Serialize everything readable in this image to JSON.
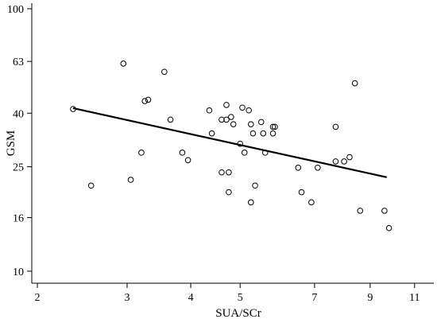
{
  "chart_data": {
    "type": "scatter",
    "title": "",
    "xlabel": "SUA/SCr",
    "ylabel": "GSM",
    "x_scale": "log",
    "y_scale": "log",
    "xlim": [
      1.95,
      12.0
    ],
    "ylim": [
      9.0,
      105.0
    ],
    "x_ticks": [
      2,
      3,
      4,
      5,
      7,
      9,
      11
    ],
    "x_tick_labels": [
      "2",
      "3",
      "4",
      "5",
      "7",
      "9",
      "11"
    ],
    "y_ticks": [
      10,
      16,
      25,
      40,
      63,
      100
    ],
    "y_tick_labels": [
      "10",
      "16",
      "25",
      "40",
      "63",
      "100"
    ],
    "grid": false,
    "series": [
      {
        "type": "scatter",
        "marker": "open-circle",
        "points": [
          [
            2.35,
            41.5
          ],
          [
            2.55,
            21.2
          ],
          [
            2.95,
            61.8
          ],
          [
            3.05,
            22.3
          ],
          [
            3.2,
            28.3
          ],
          [
            3.25,
            44.5
          ],
          [
            3.3,
            45.0
          ],
          [
            3.55,
            57.5
          ],
          [
            3.65,
            37.8
          ],
          [
            3.85,
            28.3
          ],
          [
            3.95,
            26.5
          ],
          [
            4.35,
            41.0
          ],
          [
            4.4,
            33.5
          ],
          [
            4.6,
            23.8
          ],
          [
            4.6,
            37.8
          ],
          [
            4.7,
            37.8
          ],
          [
            4.7,
            43.0
          ],
          [
            4.75,
            23.8
          ],
          [
            4.75,
            20.0
          ],
          [
            4.8,
            38.7
          ],
          [
            4.85,
            36.3
          ],
          [
            5.0,
            30.6
          ],
          [
            5.05,
            42.0
          ],
          [
            5.1,
            28.3
          ],
          [
            5.2,
            41.0
          ],
          [
            5.25,
            36.3
          ],
          [
            5.25,
            18.3
          ],
          [
            5.3,
            33.5
          ],
          [
            5.35,
            21.2
          ],
          [
            5.5,
            37.0
          ],
          [
            5.55,
            33.5
          ],
          [
            5.6,
            28.3
          ],
          [
            5.8,
            35.5
          ],
          [
            5.8,
            33.5
          ],
          [
            5.85,
            35.5
          ],
          [
            6.5,
            24.8
          ],
          [
            6.6,
            20.0
          ],
          [
            6.9,
            18.3
          ],
          [
            7.1,
            24.8
          ],
          [
            7.7,
            35.5
          ],
          [
            7.7,
            26.2
          ],
          [
            8.0,
            26.2
          ],
          [
            8.2,
            27.2
          ],
          [
            8.4,
            52.0
          ],
          [
            8.6,
            17.0
          ],
          [
            9.6,
            17.0
          ],
          [
            9.8,
            14.6
          ]
        ]
      },
      {
        "type": "line",
        "points": [
          [
            2.35,
            41.8
          ],
          [
            9.7,
            22.8
          ]
        ]
      }
    ]
  }
}
